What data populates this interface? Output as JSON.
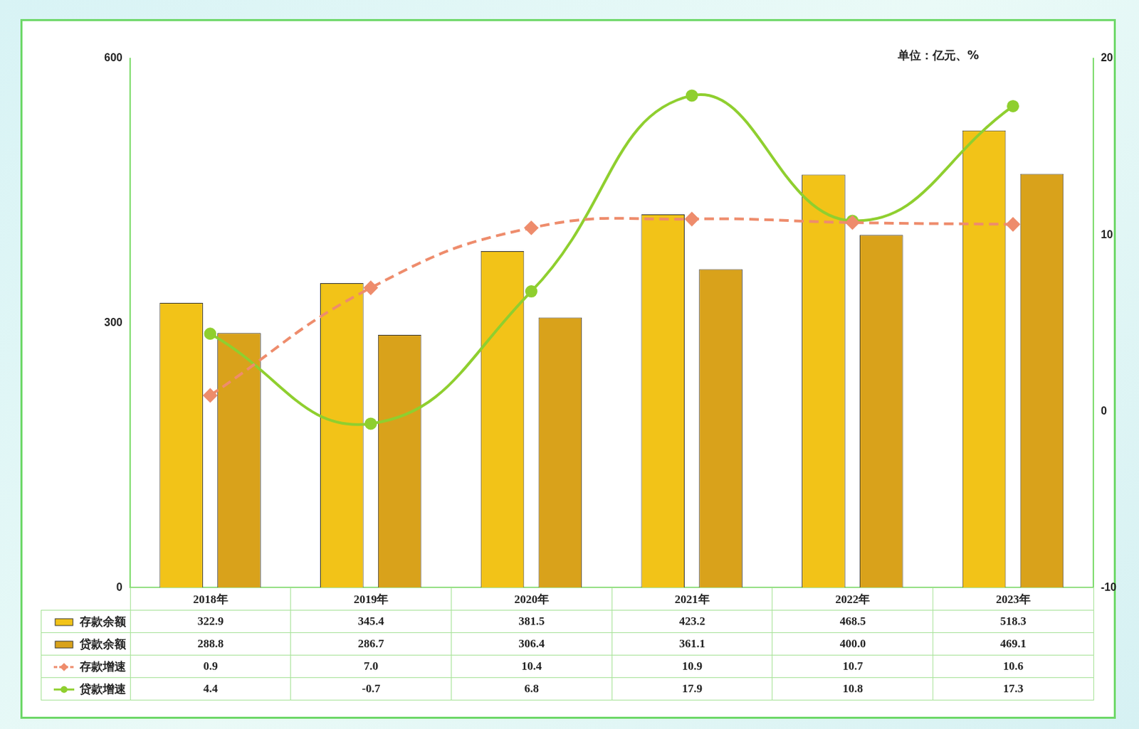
{
  "chart_data": {
    "type": "bar",
    "subtitle": "单位：亿元、%",
    "categories": [
      "2018年",
      "2019年",
      "2020年",
      "2021年",
      "2022年",
      "2023年"
    ],
    "series": [
      {
        "name": "存款余额",
        "type": "bar",
        "color": "#f2c318",
        "values": [
          322.9,
          345.4,
          381.5,
          423.2,
          468.5,
          518.3
        ],
        "value_labels": [
          "322.9",
          "345.4",
          "381.5",
          "423.2",
          "468.5",
          "518.3"
        ]
      },
      {
        "name": "贷款余额",
        "type": "bar",
        "color": "#d9a21b",
        "values": [
          288.8,
          286.7,
          306.4,
          361.1,
          400.0,
          469.1
        ],
        "value_labels": [
          "288.8",
          "286.7",
          "306.4",
          "361.1",
          "400.0",
          "469.1"
        ]
      },
      {
        "name": "存款增速",
        "type": "line",
        "axis": "y2",
        "color": "#ee8c6c",
        "line_style": "dashed",
        "marker": "diamond",
        "values": [
          0.9,
          7.0,
          10.4,
          10.9,
          10.7,
          10.6
        ],
        "value_labels": [
          "0.9",
          "7.0",
          "10.4",
          "10.9",
          "10.7",
          "10.6"
        ]
      },
      {
        "name": "贷款增速",
        "type": "line",
        "axis": "y2",
        "color": "#8fcf2f",
        "line_style": "solid",
        "marker": "circle",
        "values": [
          4.4,
          -0.7,
          6.8,
          17.9,
          10.8,
          17.3
        ],
        "value_labels": [
          "4.4",
          "-0.7",
          "6.8",
          "17.9",
          "10.8",
          "17.3"
        ]
      }
    ],
    "ylim": [
      0,
      600
    ],
    "yticks": [
      0,
      300,
      600
    ],
    "y2lim": [
      -10,
      20
    ],
    "y2ticks": [
      -10,
      0,
      10,
      20
    ],
    "grid": false
  }
}
